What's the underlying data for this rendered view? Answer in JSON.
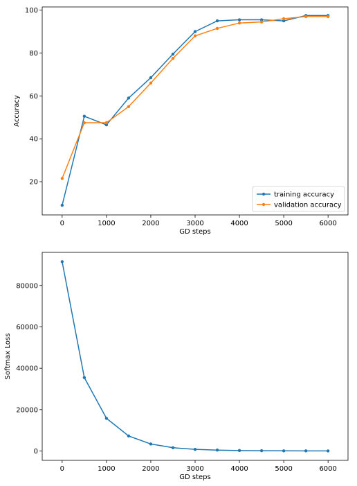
{
  "chart_data": [
    {
      "type": "line",
      "xlabel": "GD steps",
      "ylabel": "Accuracy",
      "xlim": [
        -450,
        6450
      ],
      "ylim": [
        4.5,
        101.5
      ],
      "xticks": [
        0,
        1000,
        2000,
        3000,
        4000,
        5000,
        6000
      ],
      "yticks": [
        20,
        40,
        60,
        80,
        100
      ],
      "legend_position": "lower-right",
      "grid": false,
      "x": [
        0,
        500,
        1000,
        1500,
        2000,
        2500,
        3000,
        3500,
        4000,
        4500,
        5000,
        5500,
        6000
      ],
      "series": [
        {
          "name": "training accuracy",
          "color": "#1f77b4",
          "values": [
            9,
            50.5,
            46.5,
            59,
            68.5,
            79.5,
            90,
            95,
            95.5,
            95.5,
            95,
            97.5,
            97.5
          ]
        },
        {
          "name": "validation accuracy",
          "color": "#ff7f0e",
          "values": [
            21.5,
            47.5,
            47.5,
            55,
            66,
            77.5,
            88,
            91.5,
            94,
            94.5,
            96,
            97,
            97
          ]
        }
      ]
    },
    {
      "type": "line",
      "xlabel": "GD steps",
      "ylabel": "Softmax Loss",
      "xlim": [
        -450,
        6450
      ],
      "ylim": [
        -4500,
        96000
      ],
      "xticks": [
        0,
        1000,
        2000,
        3000,
        4000,
        5000,
        6000
      ],
      "yticks": [
        0,
        20000,
        40000,
        60000,
        80000
      ],
      "grid": false,
      "x": [
        0,
        500,
        1000,
        1500,
        2000,
        2500,
        3000,
        3500,
        4000,
        4500,
        5000,
        5500,
        6000
      ],
      "series": [
        {
          "color": "#1f77b4",
          "values": [
            91500,
            35500,
            15800,
            7300,
            3400,
            1600,
            800,
            450,
            250,
            150,
            100,
            80,
            60
          ]
        }
      ]
    }
  ]
}
